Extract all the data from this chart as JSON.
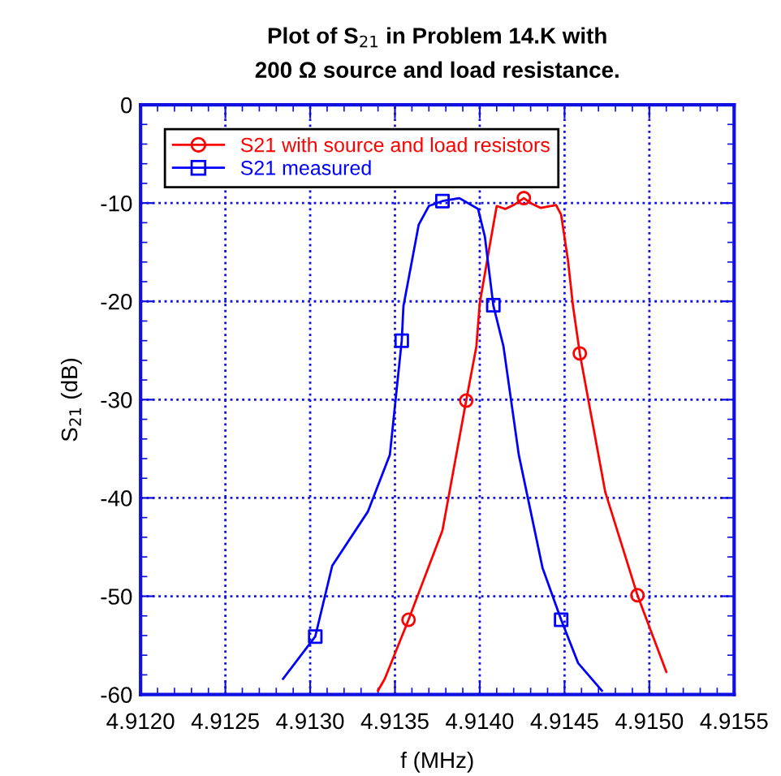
{
  "chart_data": {
    "type": "line",
    "title": "Plot of S$_{21}$ in Problem 14.K with\n200 Ω source and load resistance.",
    "xlabel": "f (MHz)",
    "ylabel": "S$_{21}$ (dB)",
    "xlim": [
      4.912,
      4.9155
    ],
    "ylim": [
      -60,
      0
    ],
    "xticks": [
      {
        "value": 4.912,
        "label": "4.9120"
      },
      {
        "value": 4.9121,
        "label": null
      },
      {
        "value": 4.9122,
        "label": null
      },
      {
        "value": 4.9123,
        "label": null
      },
      {
        "value": 4.9124,
        "label": null
      },
      {
        "value": 4.9125,
        "label": "4.9125"
      },
      {
        "value": 4.9126,
        "label": null
      },
      {
        "value": 4.9127,
        "label": null
      },
      {
        "value": 4.9128,
        "label": null
      },
      {
        "value": 4.9129,
        "label": null
      },
      {
        "value": 4.913,
        "label": "4.9130"
      },
      {
        "value": 4.9131,
        "label": null
      },
      {
        "value": 4.9132,
        "label": null
      },
      {
        "value": 4.9133,
        "label": null
      },
      {
        "value": 4.9134,
        "label": null
      },
      {
        "value": 4.9135,
        "label": "4.9135"
      },
      {
        "value": 4.9136,
        "label": null
      },
      {
        "value": 4.9137,
        "label": null
      },
      {
        "value": 4.9138,
        "label": null
      },
      {
        "value": 4.9139,
        "label": null
      },
      {
        "value": 4.914,
        "label": "4.9140"
      },
      {
        "value": 4.9141,
        "label": null
      },
      {
        "value": 4.9142,
        "label": null
      },
      {
        "value": 4.9143,
        "label": null
      },
      {
        "value": 4.9144,
        "label": null
      },
      {
        "value": 4.9145,
        "label": "4.9145"
      },
      {
        "value": 4.9146,
        "label": null
      },
      {
        "value": 4.9147,
        "label": null
      },
      {
        "value": 4.9148,
        "label": null
      },
      {
        "value": 4.9149,
        "label": null
      },
      {
        "value": 4.915,
        "label": "4.9150"
      },
      {
        "value": 4.9151,
        "label": null
      },
      {
        "value": 4.9152,
        "label": null
      },
      {
        "value": 4.9153,
        "label": null
      },
      {
        "value": 4.9154,
        "label": null
      },
      {
        "value": 4.9155,
        "label": "4.9155"
      }
    ],
    "yticks": [
      -60,
      {
        "value": -58,
        "label": null
      },
      {
        "value": -56,
        "label": null
      },
      {
        "value": -54,
        "label": null
      },
      {
        "value": -52,
        "label": null
      },
      -50,
      {
        "value": -48,
        "label": null
      },
      {
        "value": -46,
        "label": null
      },
      {
        "value": -44,
        "label": null
      },
      {
        "value": -42,
        "label": null
      },
      -40,
      {
        "value": -38,
        "label": null
      },
      {
        "value": -36,
        "label": null
      },
      {
        "value": -34,
        "label": null
      },
      {
        "value": -32,
        "label": null
      },
      -30,
      {
        "value": -28,
        "label": null
      },
      {
        "value": -26,
        "label": null
      },
      {
        "value": -24,
        "label": null
      },
      {
        "value": -22,
        "label": null
      },
      -20,
      {
        "value": -18,
        "label": null
      },
      {
        "value": -16,
        "label": null
      },
      {
        "value": -14,
        "label": null
      },
      {
        "value": -12,
        "label": null
      },
      -10,
      {
        "value": -8,
        "label": null
      },
      {
        "value": -6,
        "label": null
      },
      {
        "value": -4,
        "label": null
      },
      {
        "value": -2,
        "label": null
      },
      0
    ],
    "grid": true,
    "legend": "top left",
    "line_style": "solid",
    "series": [
      {
        "name": "S21 with source and load resistors",
        "color": "#ff0000",
        "marker": "none",
        "x": [
          4.9134,
          4.91344,
          4.91358,
          4.91378,
          4.91392,
          4.91398,
          4.914,
          4.91406,
          4.9141,
          4.91415,
          4.9142,
          4.91426,
          4.91431,
          4.91436,
          4.91445,
          4.91448,
          4.91452,
          4.91455,
          4.91459,
          4.91474,
          4.91493,
          4.9151
        ],
        "values": [
          -59.6,
          -58.4,
          -52.4,
          -43.3,
          -30.1,
          -24.6,
          -20.2,
          -14.2,
          -10.3,
          -10.6,
          -10.2,
          -9.5,
          -10.1,
          -10.5,
          -10.2,
          -11.2,
          -15.8,
          -20.5,
          -25.3,
          -39.4,
          -49.9,
          -57.7
        ]
      },
      {
        "type": "scatter",
        "color": "#ff0000",
        "marker": "circle",
        "x": [
          4.91358,
          4.91392,
          4.91426,
          4.91459,
          4.91493
        ],
        "values": [
          -52.4,
          -30.1,
          -9.5,
          -25.3,
          -49.9
        ]
      },
      {
        "name": "S21 measured",
        "color": "#0000ff",
        "marker": "none",
        "x": [
          4.91284,
          4.91303,
          4.91313,
          4.91334,
          4.91347,
          4.91354,
          4.91355,
          4.91364,
          4.9137,
          4.91378,
          4.91388,
          4.91399,
          4.91403,
          4.91408,
          4.91414,
          4.91423,
          4.91437,
          4.91448,
          4.91458,
          4.91472
        ],
        "values": [
          -58.4,
          -54.1,
          -46.9,
          -41.4,
          -35.6,
          -24,
          -20.5,
          -12.2,
          -10.3,
          -9.8,
          -9.5,
          -10.6,
          -13.4,
          -20.4,
          -24.6,
          -35.6,
          -47.1,
          -52.4,
          -56.8,
          -59.6
        ]
      },
      {
        "type": "scatter",
        "color": "#0000ff",
        "marker": "square",
        "x": [
          4.91303,
          4.91354,
          4.91378,
          4.91408,
          4.91448
        ],
        "values": [
          -54.1,
          -24,
          -9.8,
          -20.4,
          -52.4
        ]
      }
    ]
  }
}
